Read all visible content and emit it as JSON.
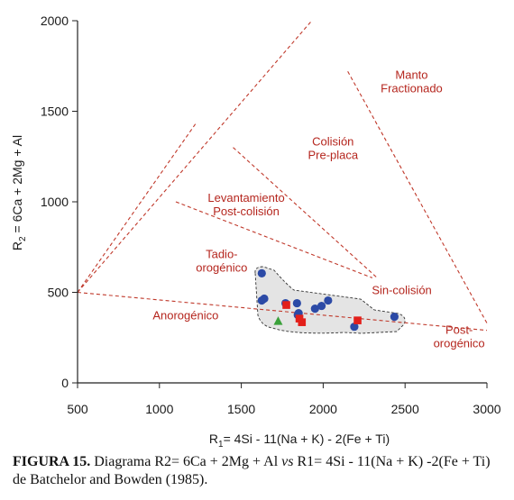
{
  "colors": {
    "field_line": "#c0392b",
    "field_text": "#b5261e",
    "blue_point": "#2c4aa6",
    "red_point": "#e3201b",
    "green_point": "#3aa13a",
    "field_fill": "#e4e4e4",
    "axis": "#222222"
  },
  "chart_data": {
    "type": "scatter",
    "xlim": [
      500,
      3000
    ],
    "ylim": [
      0,
      2000
    ],
    "x_ticks": [
      "500",
      "1000",
      "1500",
      "2000",
      "2500",
      "3000"
    ],
    "y_ticks": [
      "0",
      "500",
      "1000",
      "1500",
      "2000"
    ],
    "xlabel": "R1= 4Si - 11(Na + K) - 2(Fe + Ti)",
    "ylabel": "R2= 6Ca + 2Mg + Al",
    "xlabel_parts": {
      "r": "R",
      "sub": "1",
      "rest": "= 4Si - 11(Na + K) - 2(Fe + Ti)"
    },
    "ylabel_parts": {
      "r": "R",
      "sub": "2",
      "rest": " = 6Ca + 2Mg + Al"
    },
    "field_labels": [
      {
        "lines": [
          "Manto",
          "Fractionado"
        ],
        "x": 2540,
        "y": 1680
      },
      {
        "lines": [
          "Colisión",
          "Pre-placa"
        ],
        "x": 2060,
        "y": 1310
      },
      {
        "lines": [
          "Levantamiento",
          "Post-colisión"
        ],
        "x": 1530,
        "y": 1000
      },
      {
        "lines": [
          "Tadio-",
          "orogénico"
        ],
        "x": 1380,
        "y": 690
      },
      {
        "lines": [
          "Sin-colisión"
        ],
        "x": 2480,
        "y": 490
      },
      {
        "lines": [
          "Anorogénico"
        ],
        "x": 1160,
        "y": 350
      },
      {
        "lines": [
          "Post-",
          "orogénico"
        ],
        "x": 2830,
        "y": 270
      }
    ],
    "series": [
      {
        "marker": "circle",
        "x": [
          1625,
          1625,
          1640,
          1770,
          1840,
          1850,
          1845,
          1950,
          1990,
          2030,
          2190,
          2435
        ],
        "y": [
          605,
          455,
          465,
          440,
          440,
          385,
          375,
          410,
          425,
          455,
          310,
          365
        ]
      },
      {
        "marker": "square",
        "x": [
          1775,
          1855,
          1870,
          2210
        ],
        "y": [
          430,
          355,
          335,
          345
        ]
      },
      {
        "marker": "triangle",
        "x": [
          1725
        ],
        "y": [
          340
        ]
      }
    ]
  },
  "caption": {
    "label": "FIGURA 15.",
    "text_before": " Diagrama R2= 6Ca + 2Mg + Al ",
    "italic": "vs",
    "text_after": " R1= 4Si - 11(Na + K) -2(Fe + Ti) de Batchelor and Bowden (1985)."
  }
}
